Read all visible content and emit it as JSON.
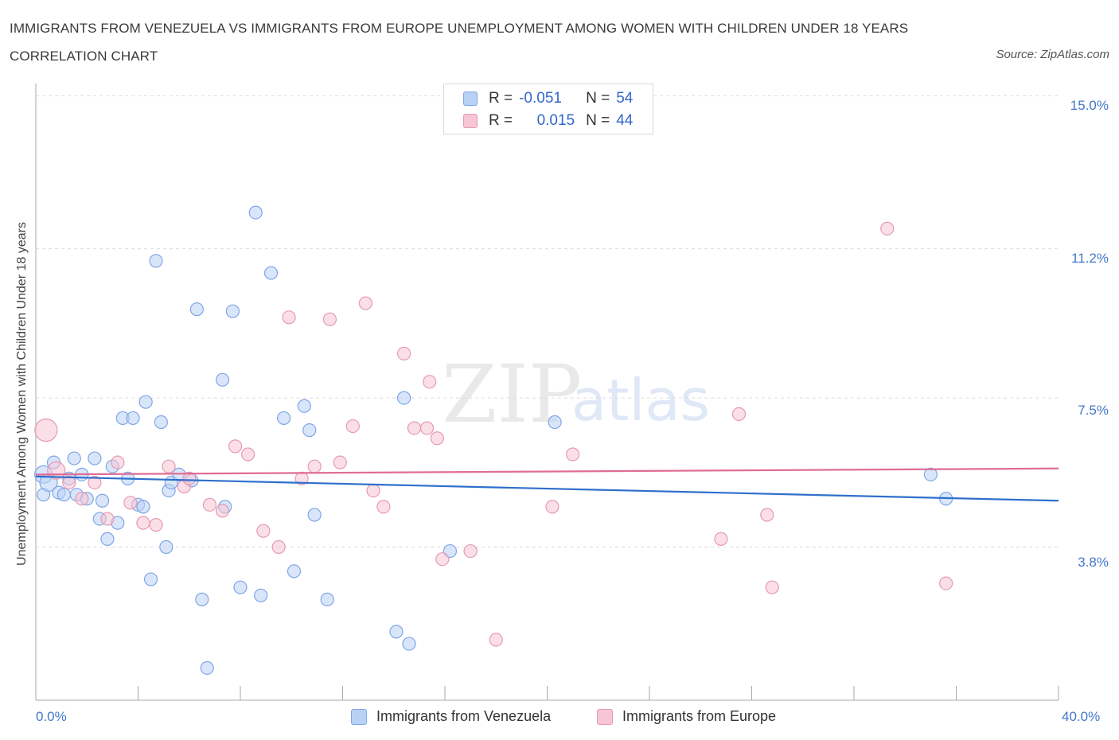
{
  "title": "IMMIGRANTS FROM VENEZUELA VS IMMIGRANTS FROM EUROPE UNEMPLOYMENT AMONG WOMEN WITH CHILDREN UNDER 18 YEARS CORRELATION CHART",
  "source": "Source: ZipAtlas.com",
  "watermark": {
    "part1": "ZIP",
    "part2": "atlas"
  },
  "legend": {
    "rows": [
      {
        "r_label": "R =",
        "r_value": "-0.051",
        "n_label": "N =",
        "n_value": "54",
        "fill": "#b9d1f5",
        "stroke": "#7fa6e6"
      },
      {
        "r_label": "R =",
        "r_value": "0.015",
        "n_label": "N =",
        "n_value": "44",
        "fill": "#f7c5d4",
        "stroke": "#e59ab3"
      }
    ]
  },
  "colors": {
    "venezuela_fill": "#b9d1f5",
    "venezuela_stroke": "#7fa6e6",
    "venezuela_line": "#2f6fcc",
    "europe_fill": "#f7c5d4",
    "europe_stroke": "#e59ab3",
    "europe_line": "#e06d95",
    "tick_text": "#4477cc",
    "grid": "#dcdcdc"
  },
  "chart_data": {
    "type": "scatter",
    "title": "IMMIGRANTS FROM VENEZUELA VS IMMIGRANTS FROM EUROPE UNEMPLOYMENT AMONG WOMEN WITH CHILDREN UNDER 18 YEARS CORRELATION CHART",
    "xlabel": "",
    "ylabel": "Unemployment Among Women with Children Under 18 years",
    "x_tick_labels": [
      "0.0%",
      "40.0%"
    ],
    "y_tick_labels": [
      "15.0%",
      "11.2%",
      "7.5%",
      "3.8%"
    ],
    "y_ticks": [
      15.0,
      11.2,
      7.5,
      3.8
    ],
    "xlim": [
      0,
      40
    ],
    "ylim": [
      0,
      15.3
    ],
    "grid": true,
    "series": [
      {
        "name": "Immigrants from Venezuela",
        "trend": [
          [
            0,
            5.55
          ],
          [
            40,
            4.95
          ]
        ],
        "points": [
          [
            0.3,
            5.6
          ],
          [
            0.3,
            5.1
          ],
          [
            0.5,
            5.4
          ],
          [
            0.7,
            5.9
          ],
          [
            0.9,
            5.15
          ],
          [
            1.1,
            5.1
          ],
          [
            1.3,
            5.5
          ],
          [
            1.5,
            6.0
          ],
          [
            1.6,
            5.1
          ],
          [
            1.8,
            5.6
          ],
          [
            2.0,
            5.0
          ],
          [
            2.3,
            6.0
          ],
          [
            2.5,
            4.5
          ],
          [
            2.6,
            4.95
          ],
          [
            2.8,
            4.0
          ],
          [
            3.0,
            5.8
          ],
          [
            3.2,
            4.4
          ],
          [
            3.4,
            7.0
          ],
          [
            3.6,
            5.5
          ],
          [
            3.8,
            7.0
          ],
          [
            4.0,
            4.85
          ],
          [
            4.2,
            4.8
          ],
          [
            4.3,
            7.4
          ],
          [
            4.5,
            3.0
          ],
          [
            4.7,
            10.9
          ],
          [
            4.9,
            6.9
          ],
          [
            5.1,
            3.8
          ],
          [
            5.2,
            5.2
          ],
          [
            5.3,
            5.4
          ],
          [
            5.6,
            5.6
          ],
          [
            6.1,
            5.45
          ],
          [
            6.3,
            9.7
          ],
          [
            6.5,
            2.5
          ],
          [
            6.7,
            0.8
          ],
          [
            7.3,
            7.95
          ],
          [
            7.4,
            4.8
          ],
          [
            7.7,
            9.65
          ],
          [
            8.0,
            2.8
          ],
          [
            8.6,
            12.1
          ],
          [
            8.8,
            2.6
          ],
          [
            9.2,
            10.6
          ],
          [
            9.7,
            7.0
          ],
          [
            10.1,
            3.2
          ],
          [
            10.5,
            7.3
          ],
          [
            10.7,
            6.7
          ],
          [
            10.9,
            4.6
          ],
          [
            11.4,
            2.5
          ],
          [
            14.1,
            1.7
          ],
          [
            14.4,
            7.5
          ],
          [
            14.6,
            1.4
          ],
          [
            16.2,
            3.7
          ],
          [
            20.3,
            6.9
          ],
          [
            35.0,
            5.6
          ],
          [
            35.6,
            5.0
          ]
        ]
      },
      {
        "name": "Immigrants from Europe",
        "trend": [
          [
            0,
            5.6
          ],
          [
            40,
            5.75
          ]
        ],
        "points": [
          [
            0.4,
            6.7
          ],
          [
            0.8,
            5.7
          ],
          [
            1.3,
            5.4
          ],
          [
            1.8,
            5.0
          ],
          [
            2.3,
            5.4
          ],
          [
            2.8,
            4.5
          ],
          [
            3.2,
            5.9
          ],
          [
            3.7,
            4.9
          ],
          [
            4.2,
            4.4
          ],
          [
            4.7,
            4.35
          ],
          [
            5.2,
            5.8
          ],
          [
            5.8,
            5.3
          ],
          [
            6.0,
            5.5
          ],
          [
            6.8,
            4.85
          ],
          [
            7.3,
            4.7
          ],
          [
            7.8,
            6.3
          ],
          [
            8.3,
            6.1
          ],
          [
            8.9,
            4.2
          ],
          [
            9.5,
            3.8
          ],
          [
            9.9,
            9.5
          ],
          [
            10.4,
            5.5
          ],
          [
            10.9,
            5.8
          ],
          [
            11.5,
            9.45
          ],
          [
            11.9,
            5.9
          ],
          [
            12.4,
            6.8
          ],
          [
            12.9,
            9.85
          ],
          [
            13.2,
            5.2
          ],
          [
            13.6,
            4.8
          ],
          [
            14.4,
            8.6
          ],
          [
            14.8,
            6.75
          ],
          [
            15.4,
            7.9
          ],
          [
            15.3,
            6.75
          ],
          [
            15.7,
            6.5
          ],
          [
            15.9,
            3.5
          ],
          [
            17.0,
            3.7
          ],
          [
            18.0,
            1.5
          ],
          [
            20.2,
            4.8
          ],
          [
            21.0,
            6.1
          ],
          [
            26.8,
            4.0
          ],
          [
            27.5,
            7.1
          ],
          [
            28.6,
            4.6
          ],
          [
            28.8,
            2.8
          ],
          [
            33.3,
            11.7
          ],
          [
            35.6,
            2.9
          ]
        ]
      }
    ]
  },
  "bottom_legend": [
    "Immigrants from Venezuela",
    "Immigrants from Europe"
  ]
}
